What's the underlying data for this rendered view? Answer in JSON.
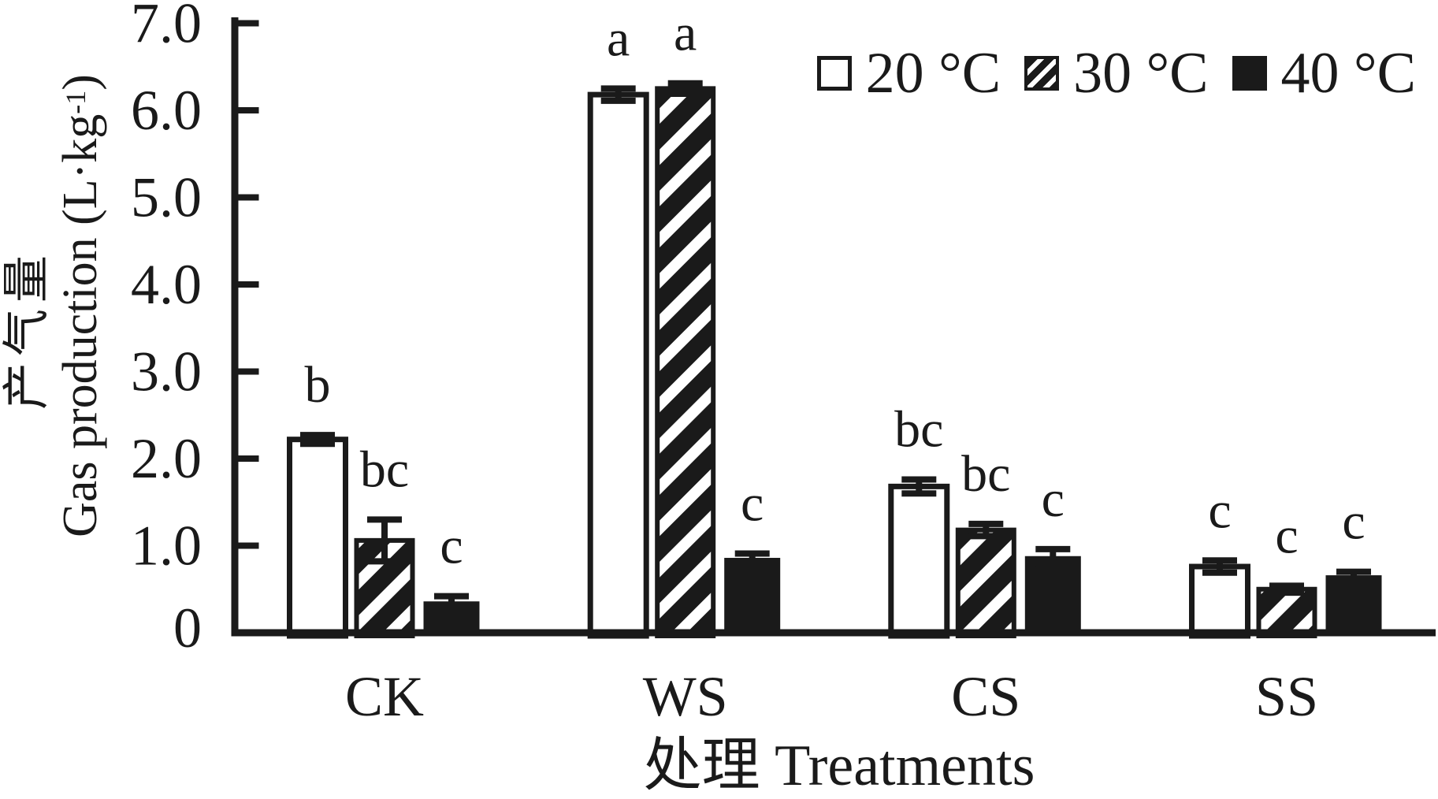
{
  "figure": {
    "background": "#ffffff",
    "ink": "#1a1a1a"
  },
  "axes": {
    "ylabel_cn": "产气量",
    "ylabel_en_main": "Gas production (L·kg",
    "ylabel_en_sup": "-1",
    "ylabel_en_close": ")",
    "xlabel": "处理 Treatments"
  },
  "chart_data": {
    "type": "bar",
    "title": "",
    "xlabel": "处理 Treatments",
    "ylabel": "产气量 Gas production (L·kg-1)",
    "ylim": [
      0,
      7.0
    ],
    "ytick_labels": [
      "0",
      "1.0",
      "2.0",
      "3.0",
      "4.0",
      "5.0",
      "6.0",
      "7.0"
    ],
    "grid": false,
    "legend_position": "top-right",
    "categories": [
      "CK",
      "WS",
      "CS",
      "SS"
    ],
    "series": [
      {
        "name": "20 °C",
        "style": "white",
        "values": [
          2.22,
          6.18,
          1.68,
          0.76
        ],
        "errors": [
          0.05,
          0.07,
          0.08,
          0.07
        ],
        "sig_letters": [
          "b",
          "a",
          "bc",
          "c"
        ]
      },
      {
        "name": "30 °C",
        "style": "hatch",
        "values": [
          1.06,
          6.25,
          1.18,
          0.5
        ],
        "errors": [
          0.24,
          0.06,
          0.07,
          0.04
        ],
        "sig_letters": [
          "bc",
          "a",
          "bc",
          "c"
        ]
      },
      {
        "name": "40 °C",
        "style": "black",
        "values": [
          0.36,
          0.86,
          0.88,
          0.66
        ],
        "errors": [
          0.06,
          0.05,
          0.08,
          0.04
        ],
        "sig_letters": [
          "c",
          "c",
          "c",
          "c"
        ]
      }
    ]
  }
}
